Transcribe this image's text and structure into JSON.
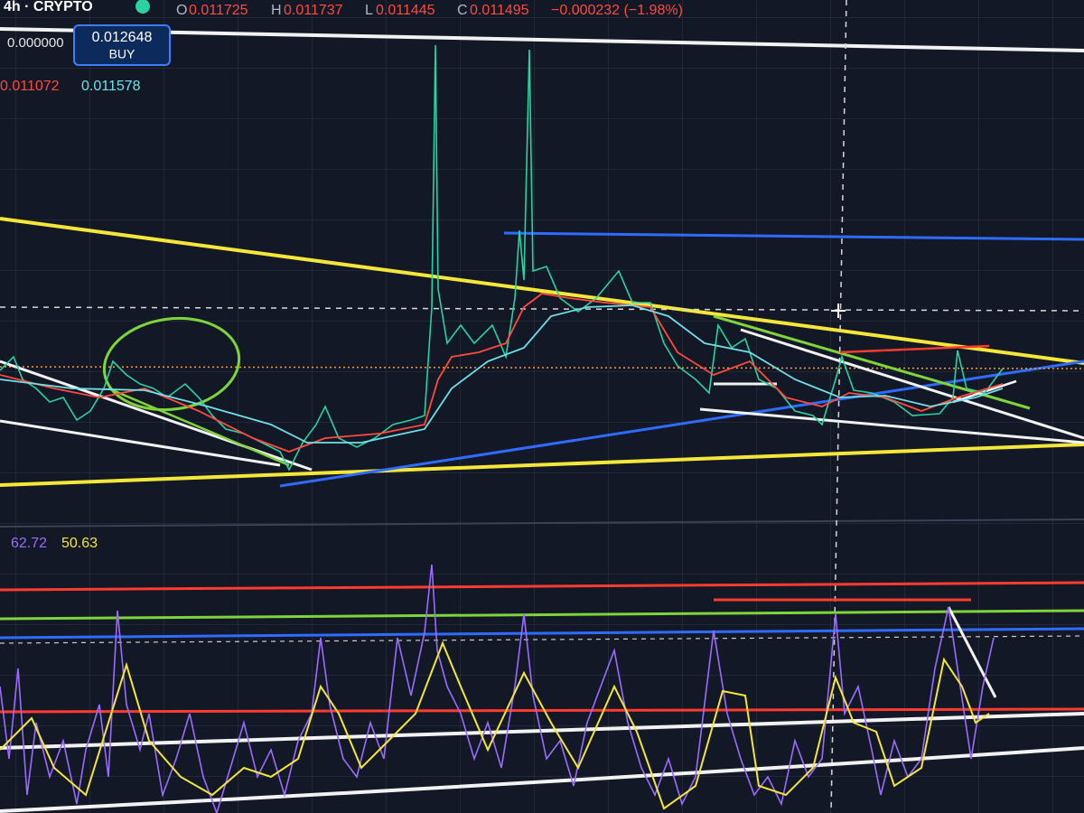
{
  "header": {
    "symbol": "4h · CRYPTO",
    "ohlc": [
      {
        "label": "O",
        "value": "0.011725"
      },
      {
        "label": "H",
        "value": "0.011737"
      },
      {
        "label": "L",
        "value": "0.011445"
      },
      {
        "label": "C",
        "value": "0.011495"
      }
    ],
    "change": "−0.000232 (−1.98%)"
  },
  "order": {
    "sell": "0.000000",
    "buy_price": "0.012648",
    "buy_label": "BUY"
  },
  "moving_averages": [
    "0.011072",
    "0.011578"
  ],
  "oscillator": [
    "62.72",
    "50.63"
  ]
}
